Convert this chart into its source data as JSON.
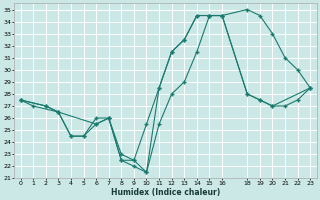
{
  "xlabel": "Humidex (Indice chaleur)",
  "xlim": [
    -0.5,
    23.5
  ],
  "ylim": [
    21,
    35.5
  ],
  "yticks": [
    21,
    22,
    23,
    24,
    25,
    26,
    27,
    28,
    29,
    30,
    31,
    32,
    33,
    34,
    35
  ],
  "xticks": [
    0,
    1,
    2,
    3,
    4,
    5,
    6,
    7,
    8,
    9,
    10,
    11,
    12,
    13,
    14,
    15,
    16,
    18,
    19,
    20,
    21,
    22,
    23
  ],
  "bg_color": "#cbe8e7",
  "grid_color": "#ffffff",
  "line_color": "#1a7a6e",
  "line1_x": [
    0,
    1,
    3,
    4,
    5,
    6,
    7,
    8,
    9,
    10,
    11,
    12,
    13,
    14,
    15,
    16,
    18,
    19,
    20,
    21,
    22,
    23
  ],
  "line1_y": [
    27.5,
    27.0,
    26.5,
    24.5,
    24.5,
    26.0,
    26.0,
    22.5,
    22.5,
    25.5,
    28.5,
    31.5,
    32.5,
    34.5,
    34.5,
    34.5,
    28.0,
    27.5,
    27.0,
    27.0,
    27.5,
    28.5
  ],
  "line2_x": [
    0,
    2,
    3,
    4,
    5,
    6,
    7,
    8,
    9,
    10,
    11,
    12,
    13,
    14,
    15,
    16,
    18,
    19,
    20,
    21,
    22,
    23
  ],
  "line2_y": [
    27.5,
    27.0,
    26.5,
    24.5,
    24.5,
    25.5,
    26.0,
    22.5,
    22.0,
    21.5,
    25.5,
    28.0,
    29.0,
    31.5,
    34.5,
    34.5,
    35.0,
    34.5,
    33.0,
    31.0,
    30.0,
    28.5
  ],
  "line3_x": [
    0,
    2,
    3,
    6,
    7,
    8,
    9,
    10,
    11,
    12,
    13,
    14,
    15,
    16,
    18,
    19,
    20,
    23
  ],
  "line3_y": [
    27.5,
    27.0,
    26.5,
    25.5,
    26.0,
    23.0,
    22.5,
    21.5,
    28.5,
    31.5,
    32.5,
    34.5,
    34.5,
    34.5,
    28.0,
    27.5,
    27.0,
    28.5
  ]
}
